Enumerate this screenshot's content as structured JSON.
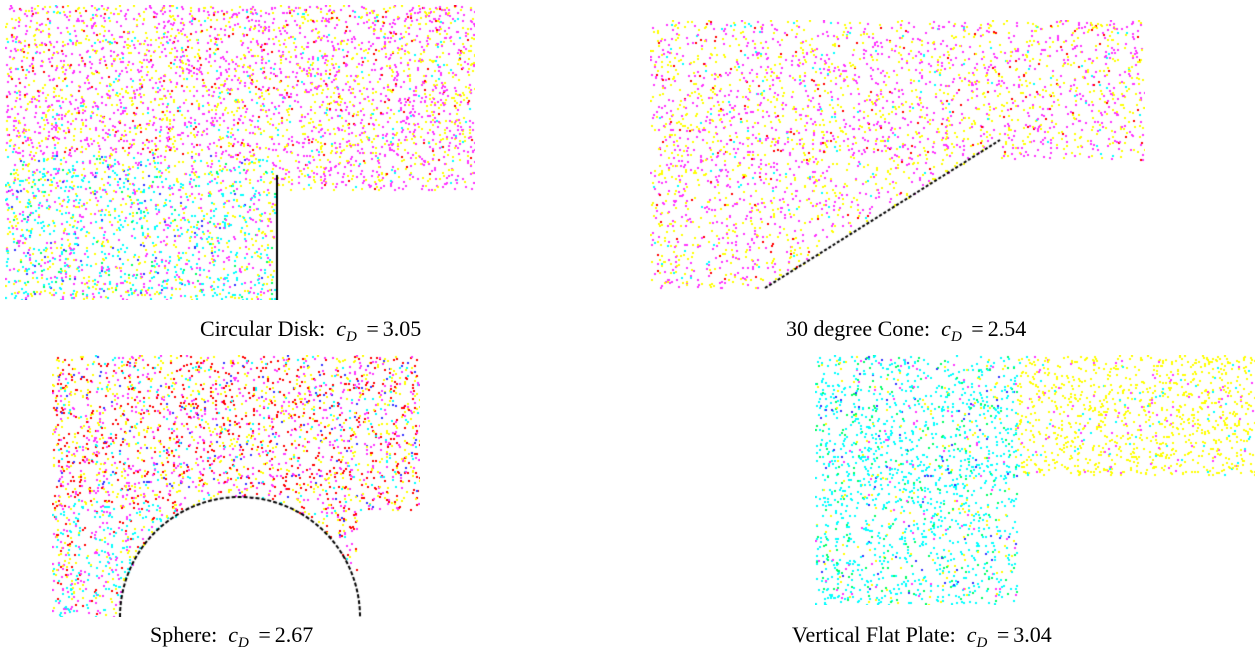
{
  "figures": [
    {
      "id": "disk",
      "label": "Circular Disk:",
      "symbol": "c",
      "subscript": "D",
      "equals": "=",
      "value": "3.05"
    },
    {
      "id": "cone",
      "label": "30 degree Cone:",
      "symbol": "c",
      "subscript": "D",
      "equals": "=",
      "value": "2.54"
    },
    {
      "id": "sphere",
      "label": "Sphere:",
      "symbol": "c",
      "subscript": "D",
      "equals": "=",
      "value": "2.67"
    },
    {
      "id": "plate",
      "label": "Vertical Flat Plate:",
      "symbol": "c",
      "subscript": "D",
      "equals": "=",
      "value": "3.04"
    }
  ],
  "colors": {
    "magenta": "#ff33ff",
    "yellow": "#ffff00",
    "cyan": "#00ffff",
    "red": "#ff0000",
    "green": "#00ff66",
    "blue": "#3333ff",
    "black": "#000000",
    "body_outline": "#000000"
  }
}
